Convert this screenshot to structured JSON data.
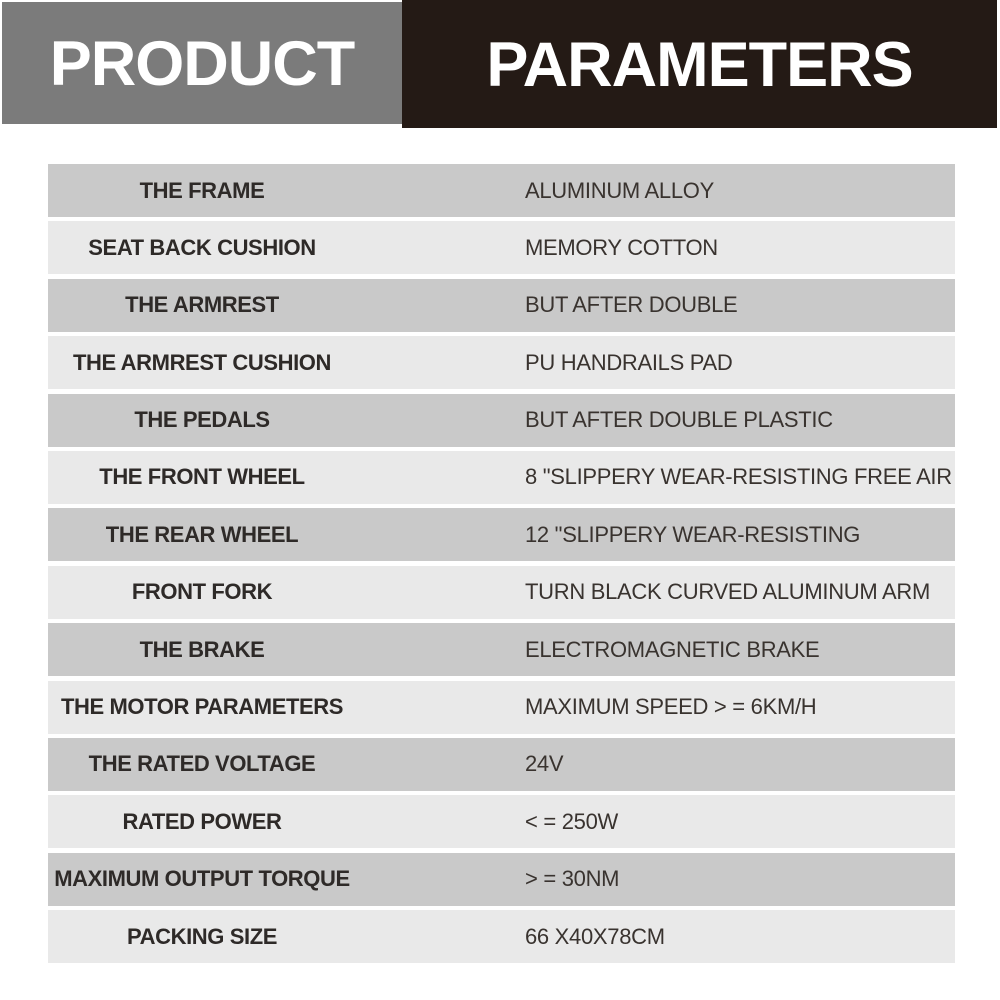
{
  "header": {
    "left_title": "PRODUCT",
    "right_title": "PARAMETERS",
    "left_bg": "#7b7b7b",
    "right_bg": "#241a15",
    "text_color": "#ffffff"
  },
  "table": {
    "row_dark_color": "#c9c9c9",
    "row_light_color": "#e9e9e9",
    "rows": [
      {
        "label": "THE FRAME",
        "value": "ALUMINUM ALLOY"
      },
      {
        "label": "SEAT BACK CUSHION",
        "value": "MEMORY COTTON"
      },
      {
        "label": "THE ARMREST",
        "value": "BUT AFTER DOUBLE"
      },
      {
        "label": "THE ARMREST CUSHION",
        "value": "PU HANDRAILS PAD"
      },
      {
        "label": "THE PEDALS",
        "value": "BUT AFTER DOUBLE PLASTIC"
      },
      {
        "label": "THE FRONT WHEEL",
        "value": "8 \"SLIPPERY WEAR-RESISTING FREE AIR"
      },
      {
        "label": "THE REAR WHEEL",
        "value": "12 \"SLIPPERY WEAR-RESISTING"
      },
      {
        "label": "FRONT FORK",
        "value": "TURN BLACK CURVED ALUMINUM ARM"
      },
      {
        "label": "THE BRAKE",
        "value": "ELECTROMAGNETIC BRAKE"
      },
      {
        "label": "THE MOTOR PARAMETERS",
        "value": "MAXIMUM SPEED > = 6KM/H"
      },
      {
        "label": "THE RATED VOLTAGE",
        "value": "24V"
      },
      {
        "label": "RATED POWER",
        "value": "< = 250W"
      },
      {
        "label": "MAXIMUM OUTPUT TORQUE",
        "value": "> = 30NM"
      },
      {
        "label": "PACKING SIZE",
        "value": "66 X40X78CM"
      }
    ]
  }
}
